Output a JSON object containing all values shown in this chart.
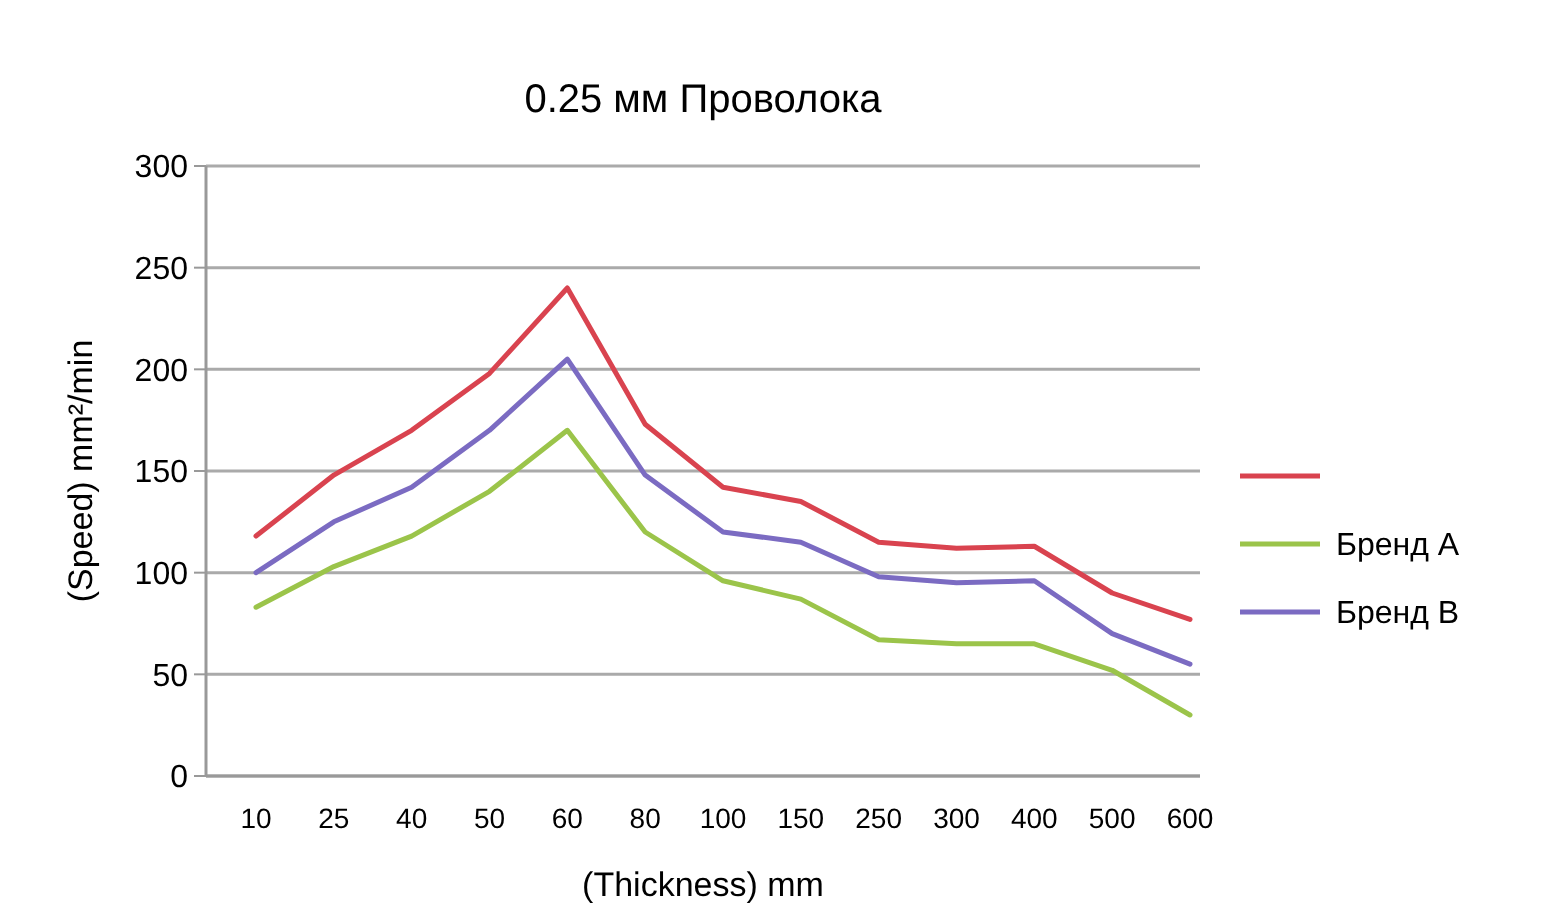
{
  "chart_data": {
    "type": "line",
    "title": "0.25 мм Проволока",
    "xlabel": "(Thickness) mm",
    "ylabel": "(Speed) mm²/min",
    "categories": [
      "10",
      "25",
      "40",
      "50",
      "60",
      "80",
      "100",
      "150",
      "250",
      "300",
      "400",
      "500",
      "600"
    ],
    "series": [
      {
        "color": "#d9434f",
        "values": [
          118,
          148,
          170,
          198,
          240,
          173,
          142,
          135,
          115,
          112,
          113,
          90,
          77
        ]
      },
      {
        "name": "Бренд А",
        "color": "#9bc44a",
        "values": [
          83,
          103,
          118,
          140,
          170,
          120,
          96,
          87,
          67,
          65,
          65,
          52,
          30
        ]
      },
      {
        "name": "Бренд В",
        "color": "#7b6bc2",
        "values": [
          100,
          125,
          142,
          170,
          205,
          148,
          120,
          115,
          98,
          95,
          96,
          70,
          55
        ]
      }
    ],
    "ylim": [
      0,
      300
    ],
    "yticks": [
      0,
      50,
      100,
      150,
      200,
      250,
      300
    ],
    "grid": "y",
    "legend": "right",
    "marker": "none",
    "line_style": "solid"
  }
}
